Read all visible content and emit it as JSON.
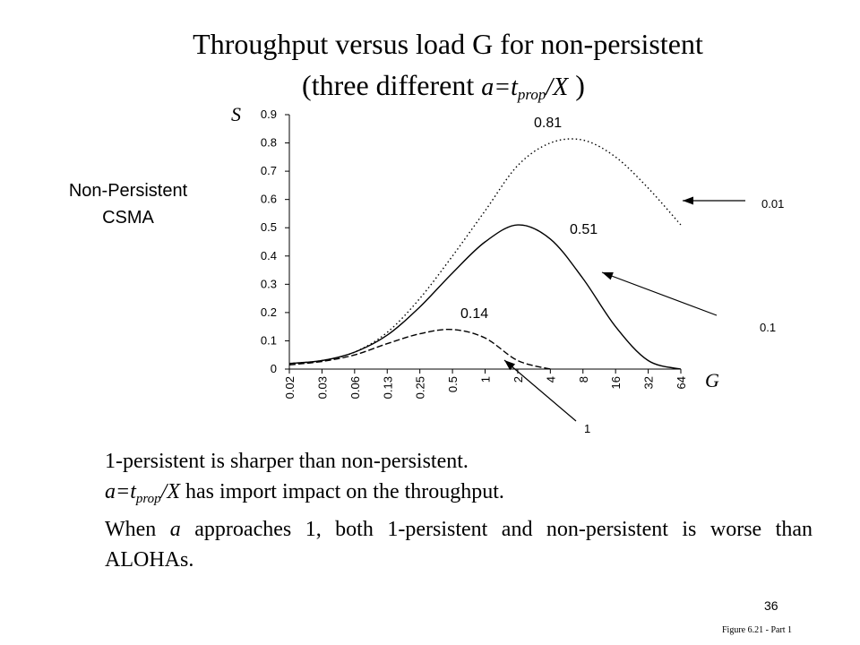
{
  "title": {
    "line1": "Throughput versus load G for non-persistent",
    "line2_prefix": "(three different ",
    "line2_eq_main": "a=t",
    "line2_eq_sub": "prop",
    "line2_eq_tail": "/X",
    "line2_suffix": " )"
  },
  "side_label": {
    "line1": "Non-Persistent",
    "line2": "CSMA"
  },
  "chart_data": {
    "type": "line",
    "xlabel": "G",
    "ylabel": "S",
    "categories": [
      "0.02",
      "0.03",
      "0.06",
      "0.13",
      "0.25",
      "0.5",
      "1",
      "2",
      "4",
      "8",
      "16",
      "32",
      "64"
    ],
    "y_ticks": [
      "0",
      "0.1",
      "0.2",
      "0.3",
      "0.4",
      "0.5",
      "0.6",
      "0.7",
      "0.8",
      "0.9"
    ],
    "ylim": [
      0,
      0.9
    ],
    "grid": false,
    "series": [
      {
        "name": "0.01",
        "style": "dotted",
        "values": [
          0.02,
          0.03,
          0.06,
          0.13,
          0.25,
          0.4,
          0.56,
          0.72,
          0.8,
          0.81,
          0.75,
          0.64,
          0.51
        ]
      },
      {
        "name": "0.1",
        "style": "solid",
        "values": [
          0.02,
          0.03,
          0.06,
          0.12,
          0.22,
          0.34,
          0.45,
          0.51,
          0.46,
          0.32,
          0.15,
          0.03,
          0.0
        ]
      },
      {
        "name": "1",
        "style": "dashed",
        "values": [
          0.015,
          0.027,
          0.05,
          0.09,
          0.125,
          0.14,
          0.11,
          0.03,
          0.0,
          null,
          null,
          null,
          null
        ]
      }
    ],
    "peak_labels": [
      "0.81",
      "0.51",
      "0.14"
    ],
    "series_labels": [
      "0.01",
      "0.1",
      "1"
    ]
  },
  "bullets": {
    "line1": "1-persistent is sharper than non-persistent.",
    "line2_main": "a=t",
    "line2_sub": "prop",
    "line2_tail": "/X",
    "line2_rest": " has import impact on the throughput.",
    "line3_pre": "When ",
    "line3_a": "a",
    "line3_rest": " approaches 1, both 1-persistent and non-persistent is worse than ALOHAs."
  },
  "footer": {
    "page_number": "36",
    "figure_caption": "Figure 6.21 - Part 1"
  }
}
